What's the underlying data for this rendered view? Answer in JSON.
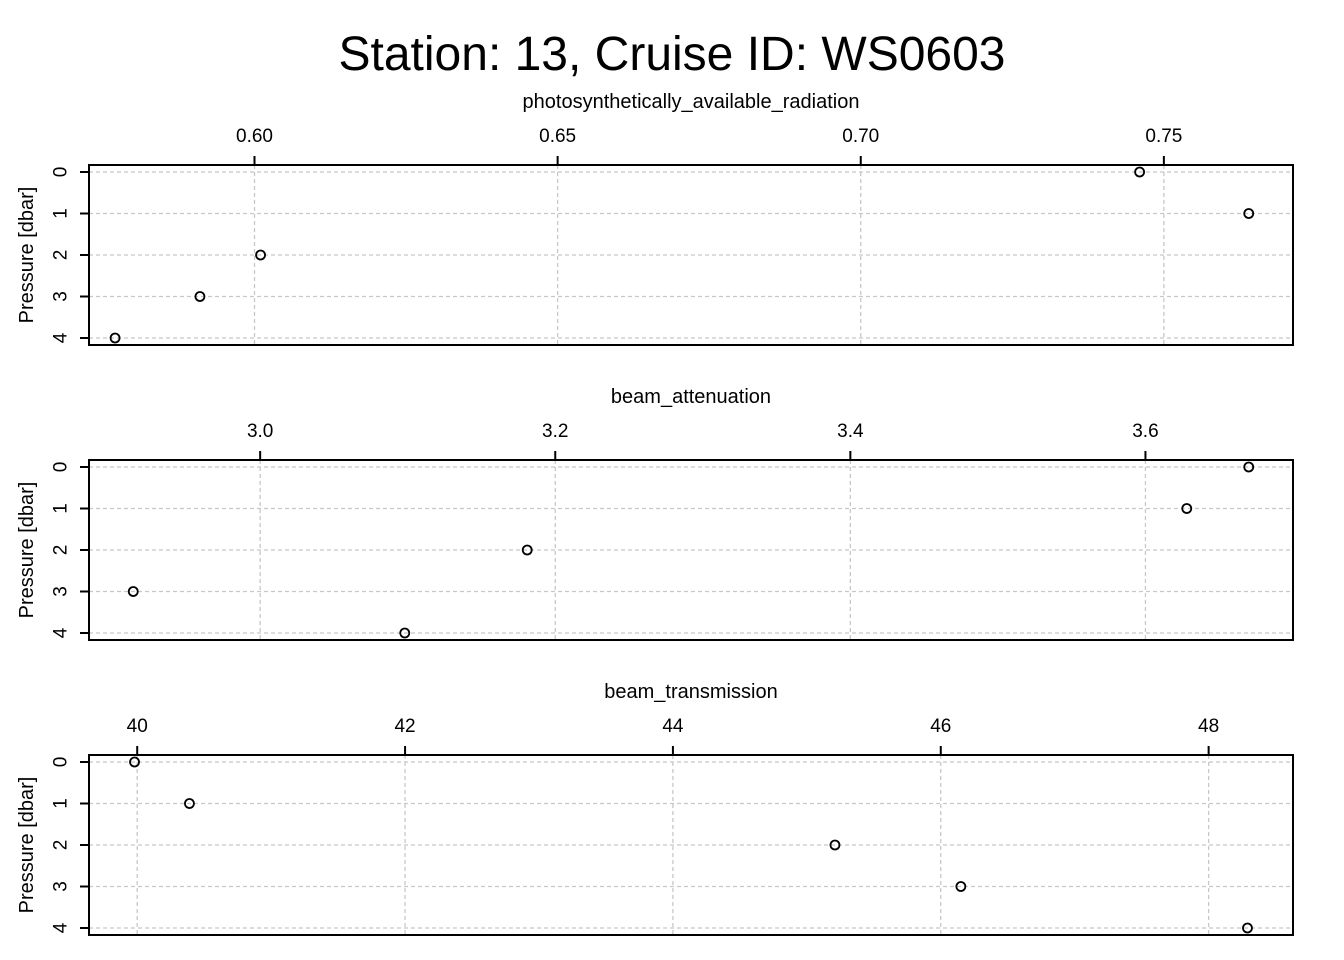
{
  "figure": {
    "title": "Station: 13, Cruise ID: WS0603"
  },
  "chart_data": [
    {
      "type": "scatter",
      "xlabel": "photosynthetically_available_radiation",
      "ylabel": "Pressure [dbar]",
      "xlim": [
        0.5727,
        0.7713
      ],
      "ylim": [
        4,
        0
      ],
      "xticks": [
        0.6,
        0.65,
        0.7,
        0.75
      ],
      "xtick_labels": [
        "0.60",
        "0.65",
        "0.70",
        "0.75"
      ],
      "yticks": [
        0,
        1,
        2,
        3,
        4
      ],
      "ytick_labels": [
        "0",
        "1",
        "2",
        "3",
        "4"
      ],
      "grid": true,
      "x": [
        0.746,
        0.764,
        0.601,
        0.591,
        0.577
      ],
      "y": [
        0,
        1,
        2,
        3,
        4
      ]
    },
    {
      "type": "scatter",
      "xlabel": "beam_attenuation",
      "ylabel": "Pressure [dbar]",
      "xlim": [
        2.884,
        3.7
      ],
      "ylim": [
        4,
        0
      ],
      "xticks": [
        3.0,
        3.2,
        3.4,
        3.6
      ],
      "xtick_labels": [
        "3.0",
        "3.2",
        "3.4",
        "3.6"
      ],
      "yticks": [
        0,
        1,
        2,
        3,
        4
      ],
      "ytick_labels": [
        "0",
        "1",
        "2",
        "3",
        "4"
      ],
      "grid": true,
      "x": [
        3.67,
        3.628,
        3.181,
        2.914,
        3.098
      ],
      "y": [
        0,
        1,
        2,
        3,
        4
      ]
    },
    {
      "type": "scatter",
      "xlabel": "beam_transmission",
      "ylabel": "Pressure [dbar]",
      "xlim": [
        39.64,
        48.63
      ],
      "ylim": [
        4,
        0
      ],
      "xticks": [
        40,
        42,
        44,
        46,
        48
      ],
      "xtick_labels": [
        "40",
        "42",
        "44",
        "46",
        "48"
      ],
      "yticks": [
        0,
        1,
        2,
        3,
        4
      ],
      "ytick_labels": [
        "0",
        "1",
        "2",
        "3",
        "4"
      ],
      "grid": true,
      "x": [
        39.98,
        40.39,
        45.21,
        46.15,
        48.29
      ],
      "y": [
        0,
        1,
        2,
        3,
        4
      ]
    }
  ]
}
